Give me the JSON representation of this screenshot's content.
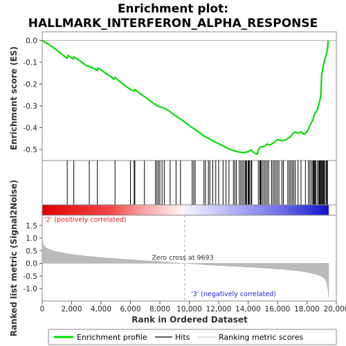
{
  "chart_data": {
    "type": "line",
    "title": "Enrichment plot:",
    "subtitle": "HALLMARK_INTERFERON_ALPHA_RESPONSE",
    "panels": {
      "es": {
        "ylabel": "Enrichment score (ES)",
        "ylim": [
          -0.55,
          0.02
        ],
        "yticks": [
          0.0,
          -0.1,
          -0.2,
          -0.3,
          -0.4,
          -0.5
        ],
        "ytick_labels": [
          "0.0",
          "-0.1",
          "-0.2",
          "-0.3",
          "-0.4",
          "-0.5"
        ],
        "series": [
          {
            "name": "Enrichment profile",
            "color": "#00dd00",
            "x": [
              0,
              500,
              1000,
              1500,
              1700,
              1750,
              2100,
              2150,
              2600,
              3000,
              3200,
              3500,
              3750,
              3800,
              4200,
              4600,
              4900,
              4950,
              5300,
              5700,
              6000,
              6250,
              6300,
              6700,
              7000,
              7400,
              7800,
              8000,
              8300,
              8600,
              9000,
              9400,
              9800,
              10200,
              10600,
              11000,
              11400,
              11800,
              12200,
              12600,
              13000,
              13400,
              13700,
              14000,
              14200,
              14400,
              14600,
              14700,
              14800,
              15100,
              15300,
              15500,
              15800,
              16000,
              16300,
              16600,
              16900,
              17000,
              17200,
              17400,
              17600,
              17800,
              18000,
              18200,
              18400,
              18500,
              18700,
              18800,
              18900,
              18950,
              19000,
              19100,
              19200,
              19300,
              19400,
              19450
            ],
            "y": [
              0.0,
              -0.02,
              -0.045,
              -0.072,
              -0.082,
              -0.068,
              -0.085,
              -0.075,
              -0.095,
              -0.115,
              -0.12,
              -0.128,
              -0.138,
              -0.125,
              -0.145,
              -0.163,
              -0.177,
              -0.17,
              -0.19,
              -0.21,
              -0.225,
              -0.232,
              -0.225,
              -0.245,
              -0.26,
              -0.28,
              -0.298,
              -0.305,
              -0.31,
              -0.322,
              -0.343,
              -0.36,
              -0.38,
              -0.4,
              -0.418,
              -0.438,
              -0.452,
              -0.468,
              -0.48,
              -0.495,
              -0.505,
              -0.512,
              -0.515,
              -0.51,
              -0.502,
              -0.515,
              -0.522,
              -0.505,
              -0.49,
              -0.485,
              -0.475,
              -0.48,
              -0.465,
              -0.455,
              -0.46,
              -0.455,
              -0.44,
              -0.43,
              -0.42,
              -0.425,
              -0.42,
              -0.43,
              -0.42,
              -0.39,
              -0.365,
              -0.34,
              -0.32,
              -0.295,
              -0.27,
              -0.25,
              -0.16,
              -0.12,
              -0.09,
              -0.07,
              -0.04,
              0.0
            ]
          }
        ]
      },
      "hits": {
        "name": "Hits",
        "positions": [
          1700,
          2150,
          3200,
          3750,
          4950,
          6000,
          6250,
          6300,
          6950,
          7700,
          7800,
          7900,
          8000,
          8150,
          8300,
          8700,
          9100,
          9400,
          10200,
          10300,
          10400,
          11000,
          11100,
          11300,
          11400,
          11600,
          11800,
          12000,
          12300,
          12500,
          12700,
          13000,
          13100,
          13200,
          13400,
          13500,
          13600,
          13700,
          13800,
          13850,
          13900,
          14000,
          14050,
          14100,
          14200,
          14250,
          14700,
          14800,
          14850,
          14900,
          15000,
          15100,
          15200,
          15300,
          15400,
          15600,
          15700,
          15800,
          15900,
          16000,
          16100,
          16300,
          16400,
          16700,
          16800,
          16900,
          17000,
          17100,
          17200,
          17400,
          17600,
          17900,
          18100,
          18200,
          18300,
          18400,
          18450,
          18500,
          18550,
          18600,
          18700,
          18800,
          18850,
          18900,
          18950,
          19000,
          19050,
          19100,
          19150,
          19200,
          19300,
          19350,
          19400
        ]
      },
      "ranking": {
        "name": "Ranking metric scores",
        "ylabel": "Ranked list metric (Signal2Noise)",
        "ylim": [
          -1.45,
          1.75
        ],
        "yticks": [
          1.5,
          1.0,
          0.5,
          0.0,
          -0.5,
          -1.0
        ],
        "ytick_labels": [
          "1.5",
          "1.0",
          "0.5",
          "0.0",
          "-0.5",
          "-1.0"
        ],
        "x": [
          0,
          30,
          80,
          150,
          250,
          400,
          600,
          900,
          1300,
          1800,
          2400,
          3200,
          4200,
          5300,
          6500,
          7800,
          9000,
          9693,
          10500,
          11500,
          12500,
          13500,
          14500,
          15500,
          16500,
          17300,
          17900,
          18300,
          18700,
          19000,
          19200,
          19350,
          19450,
          19480
        ],
        "values": [
          1.05,
          0.85,
          0.75,
          0.68,
          0.62,
          0.57,
          0.52,
          0.47,
          0.42,
          0.37,
          0.32,
          0.27,
          0.22,
          0.17,
          0.12,
          0.07,
          0.02,
          0.0,
          -0.03,
          -0.07,
          -0.1,
          -0.13,
          -0.16,
          -0.2,
          -0.24,
          -0.29,
          -0.34,
          -0.39,
          -0.45,
          -0.52,
          -0.6,
          -0.75,
          -1.1,
          -1.35
        ],
        "color": "#bbbbbb"
      }
    },
    "xlabel": "Rank in Ordered Dataset",
    "xlim": [
      0,
      20000
    ],
    "xticks": [
      0,
      2000,
      4000,
      6000,
      8000,
      10000,
      12000,
      14000,
      16000,
      18000,
      20000
    ],
    "xtick_labels": [
      "0",
      "2,000",
      "4,000",
      "6,000",
      "8,000",
      "10,000",
      "12,000",
      "14,000",
      "16,000",
      "18,000",
      "20,000"
    ],
    "dataset_size": 19480,
    "zero_cross": 9693,
    "annotations": {
      "zero_cross": "Zero cross at 9693",
      "positive": "'2' (positively correlated)",
      "negative": "'3' (negatively correlated)"
    },
    "colors": {
      "positive": "#ff0000",
      "negative": "#0000ff",
      "profile": "#00dd00"
    },
    "legend": {
      "placement": "bottom",
      "entries": [
        "Enrichment profile",
        "Hits",
        "Ranking metric scores"
      ]
    }
  }
}
